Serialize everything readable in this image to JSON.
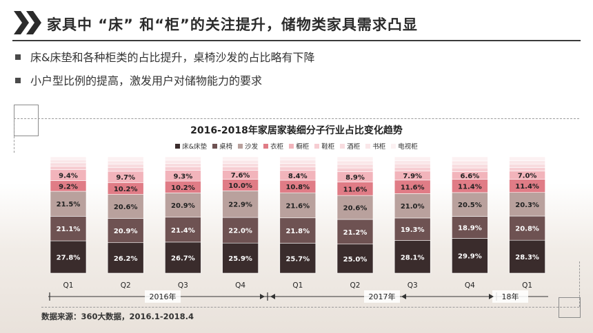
{
  "header": {
    "title": "家具中 “床” 和“柜”的关注提升，储物类家具需求凸显"
  },
  "bullets": [
    "床&床垫和各种柜类的占比提升，桌椅沙发的占比略有下降",
    "小户型比例的提高，激发用户对储物能力的要求"
  ],
  "source": "数据来源：360大数据，2016.1-2018.4",
  "colors": {
    "accent": "#2b2b2b",
    "series": [
      "#3a2c2c",
      "#6e5252",
      "#b9a19d",
      "#e07c86",
      "#f2b4bb",
      "#f6cdd2",
      "#f8dcdf",
      "#fae7e9",
      "#fcf1f2"
    ]
  },
  "chart_data": {
    "type": "bar",
    "stacked": true,
    "title": "2016-2018年家居家装细分子行业占比变化趋势",
    "categories": [
      "Q1",
      "Q2",
      "Q3",
      "Q4",
      "Q1",
      "Q2",
      "Q3",
      "Q4",
      "Q1"
    ],
    "groups": [
      {
        "label": "2016年",
        "span": [
          0,
          3
        ]
      },
      {
        "label": "2017年",
        "span": [
          4,
          7
        ]
      },
      {
        "label": "18年",
        "span": [
          8,
          8
        ]
      }
    ],
    "legend_position": "top",
    "ylim": [
      0,
      100
    ],
    "series": [
      {
        "name": "床&床垫",
        "values": [
          27.8,
          26.2,
          26.7,
          25.9,
          25.7,
          25.0,
          28.1,
          29.9,
          28.3
        ],
        "labels": [
          "27.8%",
          "26.2%",
          "26.7%",
          "25.9%",
          "25.7%",
          "25.0%",
          "28.1%",
          "29.9%",
          "28.3%"
        ]
      },
      {
        "name": "桌椅",
        "values": [
          21.1,
          20.9,
          21.4,
          22.0,
          21.8,
          21.2,
          19.3,
          18.9,
          20.8
        ],
        "labels": [
          "21.1%",
          "20.9%",
          "21.4%",
          "22.0%",
          "21.8%",
          "21.2%",
          "19.3%",
          "18.9%",
          "20.8%"
        ]
      },
      {
        "name": "沙发",
        "values": [
          21.5,
          20.6,
          20.9,
          22.9,
          21.6,
          20.6,
          21.0,
          20.5,
          20.3
        ],
        "labels": [
          "21.5%",
          "20.6%",
          "20.9%",
          "22.9%",
          "21.6%",
          "20.6%",
          "21.0%",
          "20.5%",
          "20.3%"
        ]
      },
      {
        "name": "衣柜",
        "values": [
          9.2,
          10.2,
          10.2,
          10.0,
          10.8,
          11.6,
          11.6,
          11.4,
          11.4
        ],
        "labels": [
          "9.2%",
          "10.2%",
          "10.2%",
          "10.0%",
          "10.8%",
          "11.6%",
          "11.6%",
          "11.4%",
          "11.4%"
        ]
      },
      {
        "name": "橱柜",
        "values": [
          9.4,
          9.7,
          9.3,
          7.6,
          8.4,
          8.9,
          7.9,
          6.6,
          7.0
        ],
        "labels": [
          "9.4%",
          "9.7%",
          "9.3%",
          "7.6%",
          "8.4%",
          "8.9%",
          "7.9%",
          "6.6%",
          "7.0%"
        ]
      },
      {
        "name": "鞋柜",
        "values": [
          3.0,
          3.1,
          3.0,
          3.0,
          3.1,
          3.2,
          3.1,
          3.2,
          3.1
        ]
      },
      {
        "name": "酒柜",
        "values": [
          2.8,
          3.0,
          2.9,
          2.9,
          3.0,
          3.1,
          3.0,
          3.1,
          3.0
        ]
      },
      {
        "name": "书柜",
        "values": [
          2.7,
          2.8,
          2.7,
          2.8,
          2.8,
          2.9,
          2.8,
          2.9,
          2.8
        ]
      },
      {
        "name": "电视柜",
        "values": [
          2.5,
          3.5,
          2.9,
          2.9,
          2.8,
          3.5,
          3.2,
          3.5,
          3.3
        ]
      }
    ]
  }
}
